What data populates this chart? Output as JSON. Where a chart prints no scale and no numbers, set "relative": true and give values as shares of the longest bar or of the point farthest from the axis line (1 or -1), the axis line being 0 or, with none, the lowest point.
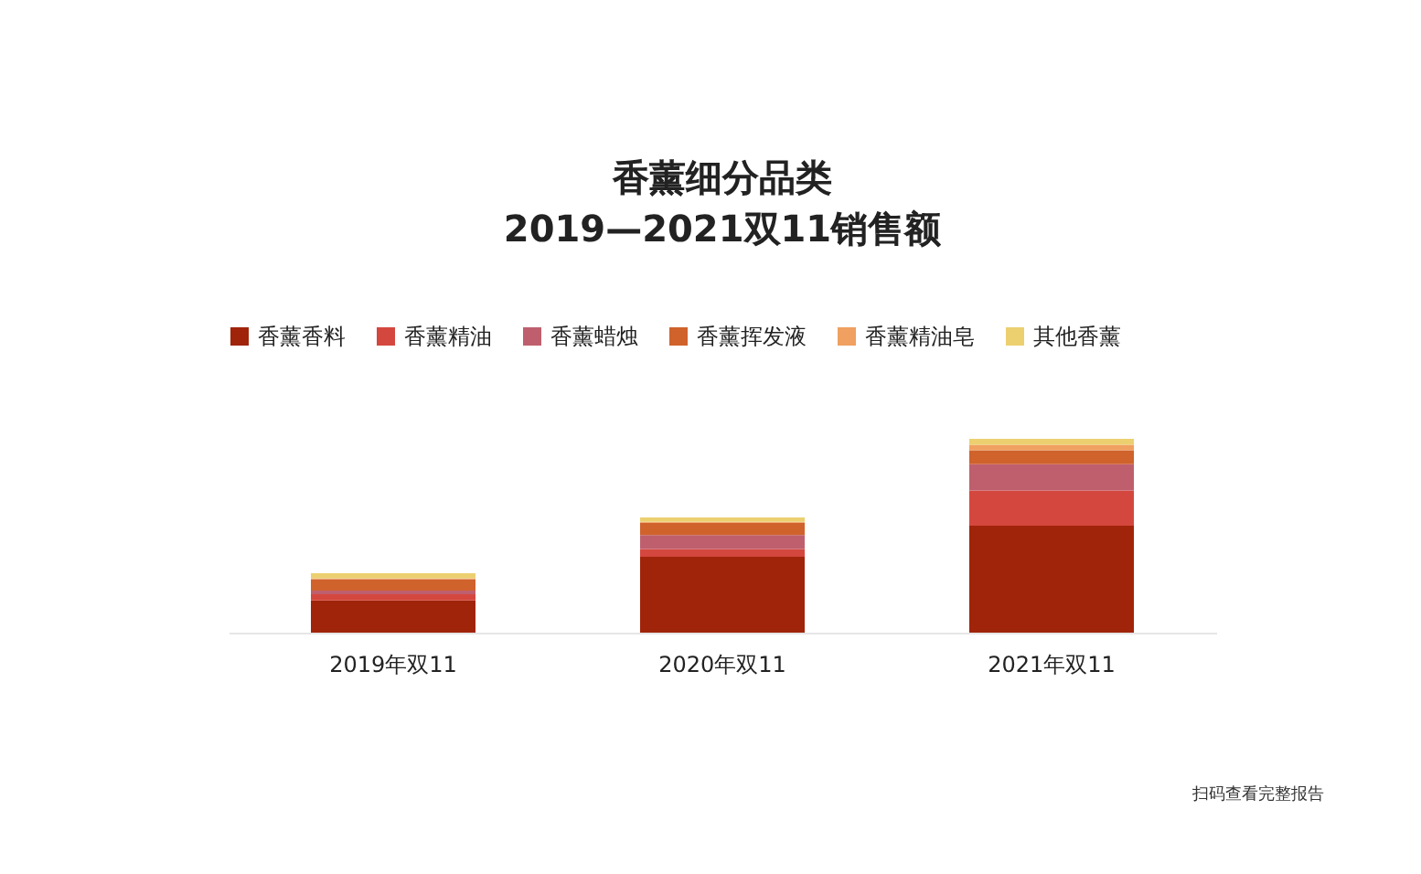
{
  "chart_data": {
    "type": "bar",
    "title": "香薰细分品类\n2019—2021双11销售额",
    "categories": [
      "2019年双11",
      "2020年双11",
      "2021年双11"
    ],
    "stacked": true,
    "relative": true,
    "legend": "top",
    "series": [
      {
        "name": "香薰香料",
        "color": "#a0240a",
        "values": [
          0.166,
          0.392,
          0.552
        ]
      },
      {
        "name": "香薰精油",
        "color": "#d4473e",
        "values": [
          0.032,
          0.04,
          0.182
        ]
      },
      {
        "name": "香薰蜡烛",
        "color": "#bf5f6e",
        "values": [
          0.019,
          0.072,
          0.135
        ]
      },
      {
        "name": "香薰挥发液",
        "color": "#d0622c",
        "values": [
          0.059,
          0.063,
          0.072
        ]
      },
      {
        "name": "香薰精油皂",
        "color": "#f0a060",
        "values": [
          0.005,
          0.005,
          0.028
        ]
      },
      {
        "name": "其他香薰",
        "color": "#ecd070",
        "values": [
          0.026,
          0.022,
          0.031
        ]
      }
    ],
    "annotations": [
      "扫码查看完整报告"
    ]
  }
}
